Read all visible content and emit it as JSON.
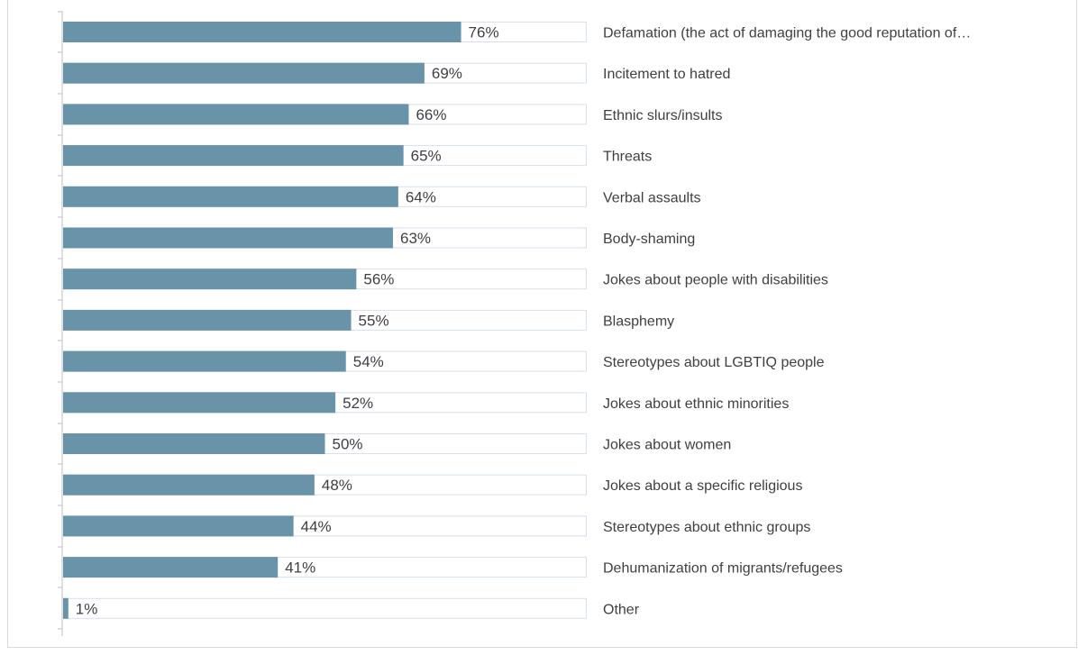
{
  "chart_data": {
    "type": "bar",
    "orientation": "horizontal",
    "categories": [
      "Defamation (the act of damaging the good reputation of…",
      "Incitement to hatred",
      "Ethnic slurs/insults",
      "Threats",
      "Verbal assaults",
      "Body-shaming",
      "Jokes about people with disabilities",
      "Blasphemy",
      "Stereotypes about LGBTIQ people",
      "Jokes about ethnic minorities",
      "Jokes about women",
      "Jokes about a specific religious",
      "Stereotypes about ethnic groups",
      "Dehumanization of migrants/refugees",
      "Other"
    ],
    "values": [
      76,
      69,
      66,
      65,
      64,
      63,
      56,
      55,
      54,
      52,
      50,
      48,
      44,
      41,
      1
    ],
    "value_labels": [
      "76%",
      "69%",
      "66%",
      "65%",
      "64%",
      "63%",
      "56%",
      "55%",
      "54%",
      "52%",
      "50%",
      "48%",
      "44%",
      "41%",
      "1%"
    ],
    "xlim": [
      0,
      100
    ],
    "grid": false,
    "legend": "none",
    "colors": {
      "bar": "#6893a8",
      "track_border": "#d6e0ee",
      "text": "#404040",
      "axis": "#bfbfbf"
    }
  }
}
